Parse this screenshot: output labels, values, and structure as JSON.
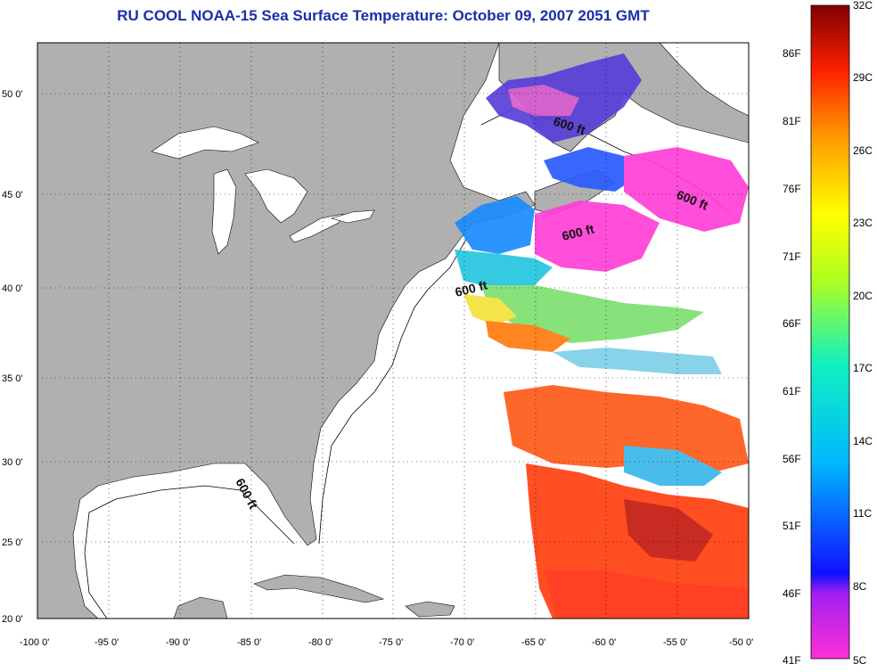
{
  "title": "RU COOL  NOAA-15  Sea Surface Temperature:  October 09, 2007 2051 GMT",
  "axes": {
    "lat_labels": [
      "50 0'",
      "45 0'",
      "40 0'",
      "35 0'",
      "30 0'",
      "25 0'",
      "20 0'"
    ],
    "lon_labels": [
      "-100 0'",
      "-95 0'",
      "-90 0'",
      "-85 0'",
      "-80 0'",
      "-75 0'",
      "-70 0'",
      "-65 0'",
      "-60 0'",
      "-55 0'",
      "-50 0'"
    ]
  },
  "isobath_labels": [
    "600 ft",
    "600 ft",
    "600 ft",
    "600 ft",
    "600 ft"
  ],
  "colorbar": {
    "fahrenheit": [
      "86F",
      "81F",
      "76F",
      "71F",
      "66F",
      "61F",
      "56F",
      "51F",
      "46F",
      "41F"
    ],
    "celsius": [
      "32C",
      "29C",
      "26C",
      "23C",
      "20C",
      "17C",
      "14C",
      "11C",
      "8C",
      "5C"
    ]
  },
  "colors": {
    "land": "#b0b0b0",
    "ocean_no_data": "#ffffff",
    "title": "#1a2fa8"
  }
}
